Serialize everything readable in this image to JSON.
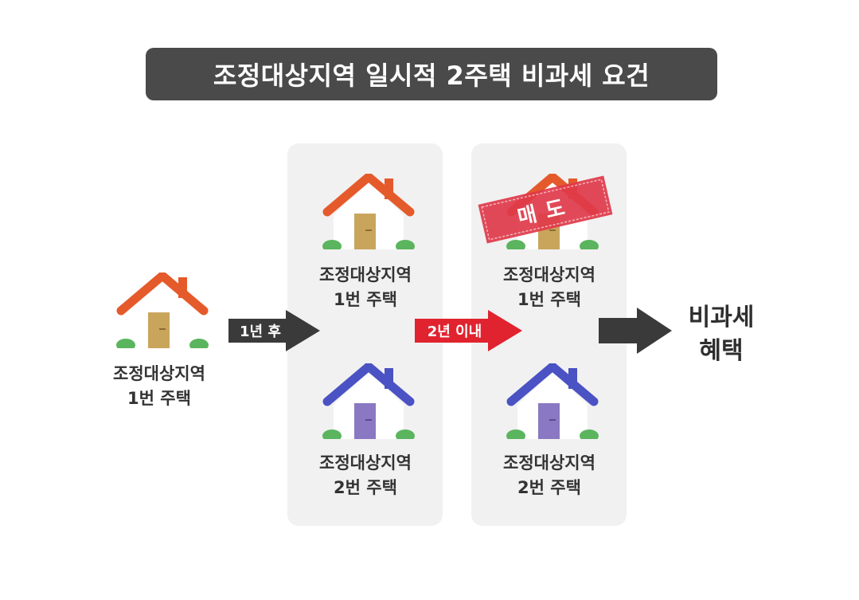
{
  "title": "조정대상지역 일시적 2주택 비과세 요건",
  "colors": {
    "title_bg": "#4a4a4a",
    "panel_bg": "#f1f1f1",
    "house_orange": "#e55a2b",
    "house_blue": "#4a52c4",
    "door_gold": "#c9a55c",
    "door_purple": "#8a78c2",
    "bush_green": "#5ab55e",
    "arrow_dark": "#3a3a3a",
    "arrow_red": "#e0232e",
    "stamp_red": "#e0394a"
  },
  "start": {
    "house": {
      "icon": "house-orange-icon",
      "line1": "조정대상지역",
      "line2": "1번 주택"
    }
  },
  "arrow1": {
    "label": "1년 후"
  },
  "panel1": {
    "house1": {
      "icon": "house-orange-icon",
      "line1": "조정대상지역",
      "line2": "1번 주택"
    },
    "house2": {
      "icon": "house-blue-icon",
      "line1": "조정대상지역",
      "line2": "2번 주택"
    }
  },
  "arrow2": {
    "label": "2년 이내"
  },
  "panel2": {
    "sold_stamp": "매도",
    "house1": {
      "icon": "house-orange-icon",
      "line1": "조정대상지역",
      "line2": "1번 주택"
    },
    "house2": {
      "icon": "house-blue-icon",
      "line1": "조정대상지역",
      "line2": "2번 주택"
    }
  },
  "result": {
    "line1": "비과세",
    "line2": "혜택"
  }
}
